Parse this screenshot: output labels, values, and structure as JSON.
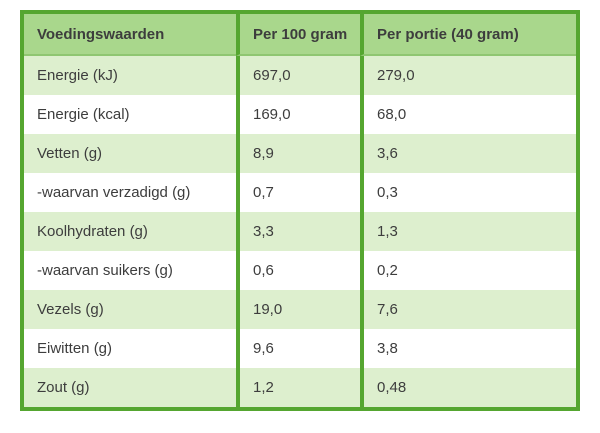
{
  "colors": {
    "border_green": "#55a630",
    "header_background": "#a9d78c",
    "alt_row_background": "#ddefce",
    "row_background": "#ffffff",
    "text": "#3d3d3d"
  },
  "table": {
    "columns": [
      "Voedingswaarden",
      "Per 100 gram",
      "Per portie (40 gram)"
    ],
    "rows": [
      {
        "label": "Energie (kJ)",
        "per_100_gram": "697,0",
        "per_portie": "279,0"
      },
      {
        "label": "Energie (kcal)",
        "per_100_gram": "169,0",
        "per_portie": "68,0"
      },
      {
        "label": "Vetten (g)",
        "per_100_gram": "8,9",
        "per_portie": "3,6"
      },
      {
        "label": "-waarvan verzadigd (g)",
        "per_100_gram": "0,7",
        "per_portie": "0,3"
      },
      {
        "label": "Koolhydraten (g)",
        "per_100_gram": "3,3",
        "per_portie": "1,3"
      },
      {
        "label": "-waarvan suikers (g)",
        "per_100_gram": "0,6",
        "per_portie": "0,2"
      },
      {
        "label": "Vezels (g)",
        "per_100_gram": "19,0",
        "per_portie": "7,6"
      },
      {
        "label": "Eiwitten (g)",
        "per_100_gram": "9,6",
        "per_portie": "3,8"
      },
      {
        "label": "Zout (g)",
        "per_100_gram": "1,2",
        "per_portie": "0,48"
      }
    ]
  }
}
